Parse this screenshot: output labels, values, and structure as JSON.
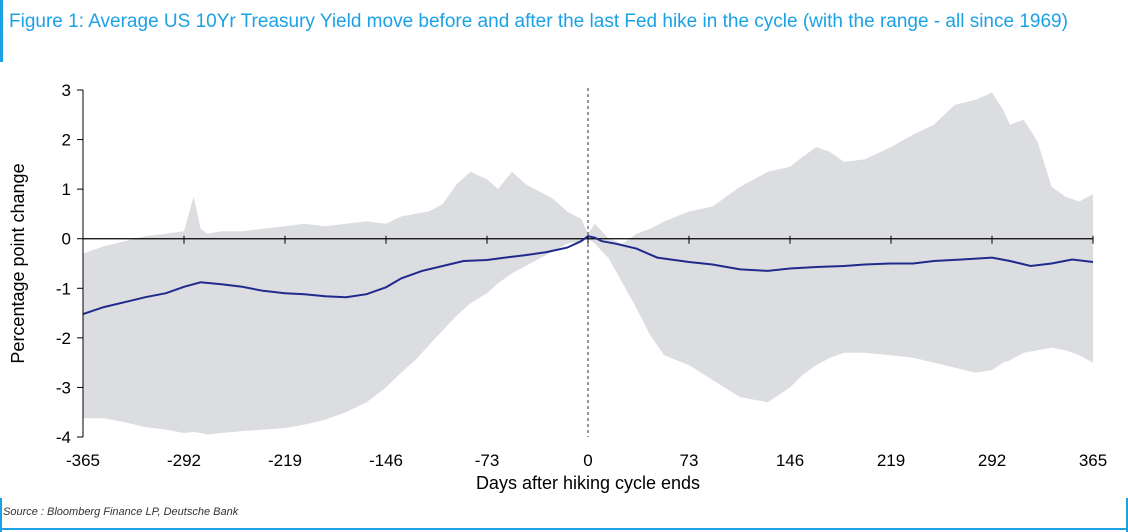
{
  "figure": {
    "title": "Figure 1: Average US 10Yr Treasury Yield move before and after the last Fed hike in the cycle (with the range - all since 1969)",
    "source": "Source : Bloomberg Finance LP, Deutsche Bank"
  },
  "colors": {
    "accent": "#1aa1e6",
    "line": "#1f2a8c",
    "range": "#dcdde1"
  },
  "chart_data": {
    "type": "area",
    "xlabel": "Days after hiking cycle ends",
    "ylabel": "Percentage point change",
    "xlim": [
      -365,
      365
    ],
    "ylim": [
      -4,
      3
    ],
    "xticks": [
      -365,
      -292,
      -219,
      -146,
      -73,
      0,
      73,
      146,
      219,
      292,
      365
    ],
    "yticks": [
      3,
      2,
      1,
      0,
      -1,
      -2,
      -3,
      -4
    ],
    "zero_line": true,
    "vertical_marker_x": 0,
    "legend": "none",
    "series": [
      {
        "type": "line",
        "x": [
          -365,
          -350,
          -335,
          -320,
          -305,
          -292,
          -280,
          -265,
          -250,
          -235,
          -219,
          -205,
          -190,
          -175,
          -160,
          -146,
          -135,
          -120,
          -105,
          -90,
          -73,
          -60,
          -45,
          -30,
          -15,
          -5,
          0,
          5,
          10,
          20,
          35,
          50,
          73,
          90,
          110,
          130,
          146,
          165,
          185,
          200,
          219,
          235,
          250,
          270,
          292,
          305,
          320,
          335,
          350,
          365
        ],
        "y": [
          -1.52,
          -1.38,
          -1.28,
          -1.18,
          -1.1,
          -0.97,
          -0.88,
          -0.92,
          -0.97,
          -1.05,
          -1.1,
          -1.12,
          -1.16,
          -1.18,
          -1.12,
          -0.98,
          -0.8,
          -0.65,
          -0.55,
          -0.45,
          -0.43,
          -0.38,
          -0.33,
          -0.27,
          -0.18,
          -0.05,
          0.05,
          0.02,
          -0.05,
          -0.1,
          -0.2,
          -0.38,
          -0.47,
          -0.52,
          -0.62,
          -0.65,
          -0.6,
          -0.57,
          -0.55,
          -0.52,
          -0.5,
          -0.5,
          -0.45,
          -0.42,
          -0.38,
          -0.45,
          -0.55,
          -0.5,
          -0.42,
          -0.47
        ]
      },
      {
        "type": "range",
        "x": [
          -365,
          -350,
          -335,
          -320,
          -305,
          -292,
          -285,
          -280,
          -275,
          -265,
          -250,
          -235,
          -219,
          -205,
          -190,
          -175,
          -160,
          -146,
          -135,
          -125,
          -115,
          -105,
          -95,
          -85,
          -73,
          -65,
          -55,
          -45,
          -35,
          -25,
          -15,
          -5,
          0,
          5,
          15,
          25,
          35,
          45,
          55,
          73,
          90,
          110,
          130,
          146,
          155,
          165,
          175,
          185,
          200,
          219,
          235,
          250,
          265,
          280,
          292,
          300,
          305,
          315,
          325,
          335,
          345,
          355,
          365
        ],
        "upper": [
          -0.3,
          -0.15,
          -0.05,
          0.05,
          0.1,
          0.15,
          0.85,
          0.2,
          0.1,
          0.15,
          0.15,
          0.2,
          0.25,
          0.3,
          0.25,
          0.3,
          0.35,
          0.3,
          0.45,
          0.5,
          0.55,
          0.7,
          1.1,
          1.35,
          1.2,
          1.0,
          1.35,
          1.1,
          0.95,
          0.8,
          0.55,
          0.4,
          0.1,
          0.3,
          0.0,
          -0.1,
          0.1,
          0.2,
          0.35,
          0.55,
          0.65,
          1.05,
          1.35,
          1.45,
          1.65,
          1.85,
          1.75,
          1.55,
          1.6,
          1.85,
          2.1,
          2.3,
          2.7,
          2.8,
          2.95,
          2.6,
          2.3,
          2.4,
          1.95,
          1.05,
          0.85,
          0.75,
          0.9
        ],
        "lower": [
          -3.62,
          -3.62,
          -3.7,
          -3.8,
          -3.85,
          -3.92,
          -3.9,
          -3.92,
          -3.95,
          -3.92,
          -3.88,
          -3.85,
          -3.82,
          -3.75,
          -3.65,
          -3.5,
          -3.3,
          -3.0,
          -2.7,
          -2.45,
          -2.15,
          -1.85,
          -1.55,
          -1.3,
          -1.1,
          -0.9,
          -0.7,
          -0.55,
          -0.4,
          -0.25,
          -0.1,
          -0.05,
          0.0,
          -0.1,
          -0.4,
          -0.9,
          -1.4,
          -1.95,
          -2.35,
          -2.55,
          -2.85,
          -3.2,
          -3.3,
          -3.0,
          -2.75,
          -2.55,
          -2.4,
          -2.3,
          -2.3,
          -2.35,
          -2.4,
          -2.5,
          -2.6,
          -2.7,
          -2.65,
          -2.5,
          -2.45,
          -2.3,
          -2.25,
          -2.2,
          -2.25,
          -2.35,
          -2.5
        ]
      }
    ]
  }
}
